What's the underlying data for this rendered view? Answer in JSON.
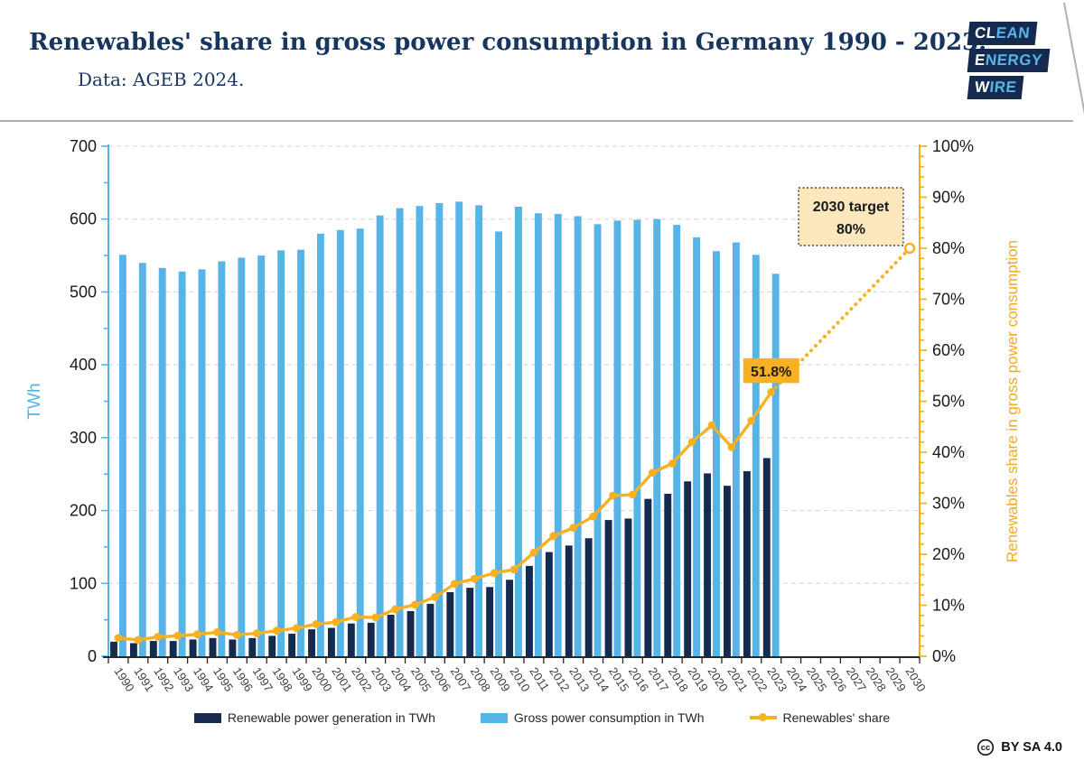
{
  "header": {
    "title": "Renewables' share in gross power consumption in Germany 1990 - 2023.",
    "subtitle": "Data: AGEB 2024.",
    "logo": {
      "lines": [
        {
          "highlight": "CL",
          "rest": "EAN"
        },
        {
          "highlight": "E",
          "rest": "NERGY"
        },
        {
          "highlight": "W",
          "rest": "IRE"
        }
      ]
    }
  },
  "chart_data": {
    "type": "bar",
    "subtype": "grouped bars with secondary-axis line",
    "categories": [
      "1990",
      "1991",
      "1992",
      "1993",
      "1994",
      "1995",
      "1996",
      "1997",
      "1998",
      "1999",
      "2000",
      "2001",
      "2002",
      "2003",
      "2004",
      "2005",
      "2006",
      "2007",
      "2008",
      "2009",
      "2010",
      "2011",
      "2012",
      "2013",
      "2014",
      "2015",
      "2016",
      "2017",
      "2018",
      "2019",
      "2020",
      "2021",
      "2022",
      "2023",
      "2024",
      "2025",
      "2026",
      "2027",
      "2028",
      "2029",
      "2030"
    ],
    "series": [
      {
        "name": "Renewable power generation in TWh",
        "type": "bar",
        "axis": "left",
        "color": "#142A4E",
        "values": [
          20,
          18,
          21,
          21,
          23,
          25,
          23,
          25,
          28,
          31,
          37,
          39,
          45,
          46,
          57,
          62,
          72,
          88,
          94,
          95,
          105,
          124,
          143,
          152,
          162,
          187,
          189,
          216,
          223,
          240,
          251,
          234,
          254,
          272
        ]
      },
      {
        "name": "Gross power consumption in TWh",
        "type": "bar",
        "axis": "left",
        "color": "#56B4E6",
        "values": [
          551,
          540,
          533,
          528,
          531,
          542,
          547,
          550,
          557,
          558,
          580,
          585,
          587,
          605,
          615,
          618,
          622,
          624,
          619,
          583,
          617,
          608,
          607,
          604,
          593,
          598,
          599,
          600,
          592,
          575,
          556,
          568,
          551,
          525
        ]
      },
      {
        "name": "Renewables' share",
        "type": "line",
        "axis": "right",
        "color": "#F9B021",
        "unit": "%",
        "values": [
          3.6,
          3.2,
          3.8,
          4.0,
          4.3,
          4.7,
          4.2,
          4.5,
          5.0,
          5.5,
          6.3,
          6.7,
          7.7,
          7.6,
          9.2,
          10.1,
          11.6,
          14.2,
          15.2,
          16.3,
          17.0,
          20.3,
          23.6,
          25.2,
          27.4,
          31.5,
          31.7,
          36.0,
          37.8,
          42.0,
          45.3,
          41.0,
          46.2,
          51.8
        ]
      }
    ],
    "projection": {
      "style": "dotted",
      "color": "#F9B021",
      "from": {
        "year": "2023",
        "value": 51.8
      },
      "to": {
        "year": "2030",
        "value": 80
      }
    },
    "left_axis": {
      "title": "TWh",
      "min": 0,
      "max": 700,
      "major_step": 100,
      "minor_step": 50,
      "color": "#56B4E6"
    },
    "right_axis": {
      "title": "Renewables share in gross power consumption",
      "min": 0,
      "max": 100,
      "major_step": 10,
      "minor_step": 2,
      "unit": "%",
      "color": "#F9A91C"
    },
    "annotations": {
      "current_share_label": "51.8%",
      "target_line1": "2030 target",
      "target_line2": "80%",
      "target_box_fill": "#FCE8BC"
    },
    "grid": "horizontal dashed",
    "legend_position": "bottom"
  },
  "footer": {
    "cc_symbol": "cc",
    "license": "BY SA 4.0"
  }
}
